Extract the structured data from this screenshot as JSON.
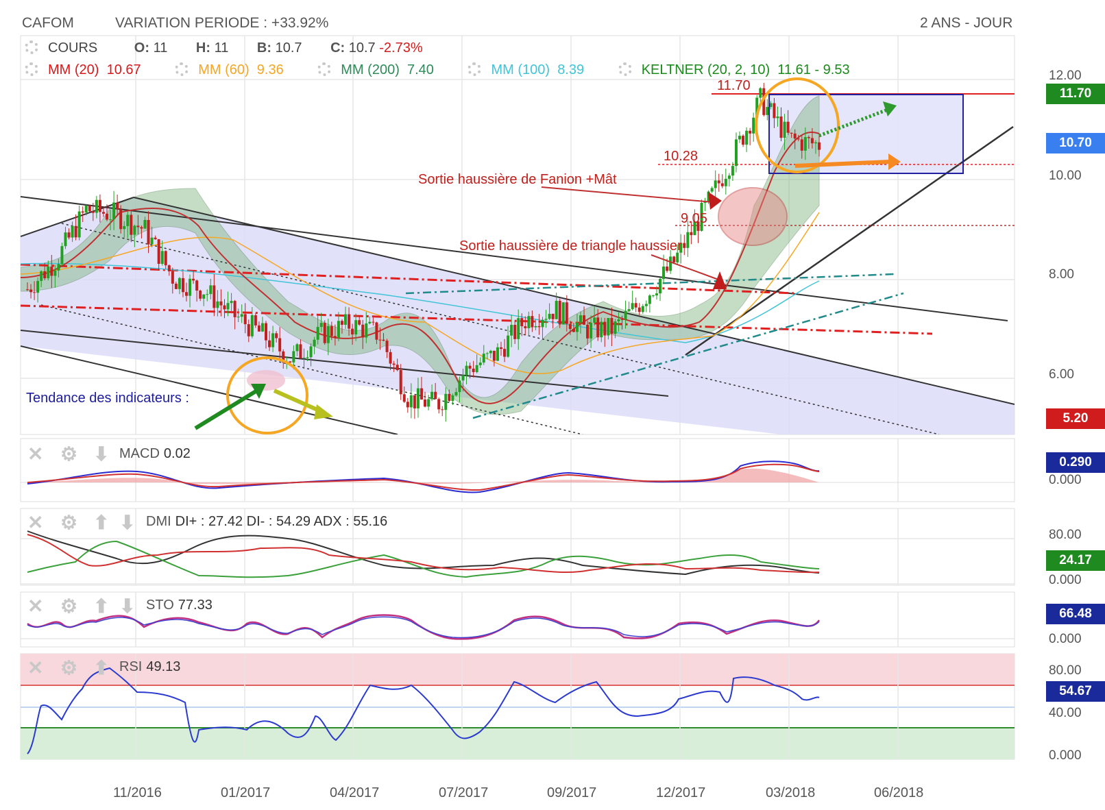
{
  "header": {
    "symbol": "CAFOM",
    "variation_label": "VARIATION PERIODE : +33.92%",
    "period": "2 ANS - JOUR"
  },
  "legend": {
    "cours_label": "COURS",
    "o_label": "O:",
    "o_value": "11",
    "h_label": "H:",
    "h_value": "11",
    "b_label": "B:",
    "b_value": "10.7",
    "c_label": "C:",
    "c_value": "10.7",
    "c_change": "-2.73%",
    "mm20_label": "MM (20)",
    "mm20_value": "10.67",
    "mm20_color": "#d7191c",
    "mm60_label": "MM (60)",
    "mm60_value": "9.36",
    "mm60_color": "#f5a623",
    "mm200_label": "MM (200)",
    "mm200_value": "7.40",
    "mm200_color": "#2e8b57",
    "mm100_label": "MM (100)",
    "mm100_value": "8.39",
    "mm100_color": "#40c4d8",
    "keltner_label": "KELTNER (20, 2, 10)",
    "keltner_value": "11.61 - 9.53",
    "keltner_color": "#1a8a1a"
  },
  "price_axis": {
    "ticks": [
      "12.00",
      "10.00",
      "8.00",
      "6.00"
    ],
    "tag_top": "11.70",
    "tag_current": "10.70",
    "tag_low": "5.20"
  },
  "x_axis": {
    "ticks": [
      "11/2016",
      "01/2017",
      "04/2017",
      "07/2017",
      "09/2017",
      "12/2017",
      "03/2018",
      "06/2018"
    ]
  },
  "annotations": {
    "level_1170": "11.70",
    "level_1028": "10.28",
    "level_905": "9.05",
    "fanion": "Sortie haussière de Fanion +Mât",
    "triangle": "Sortie haussière de triangle haussier",
    "tendance": "Tendance des indicateurs :"
  },
  "macd": {
    "label": "MACD",
    "value": "0.02",
    "tag": "0.290",
    "axis": [
      "0.000"
    ]
  },
  "dmi": {
    "label": "DMI",
    "values": "DI+ : 27.42 DI- : 54.29 ADX : 55.16",
    "tag": "24.17",
    "axis": [
      "80.00",
      "0.000"
    ]
  },
  "sto": {
    "label": "STO",
    "value": "77.33",
    "tag": "66.48",
    "axis": [
      "0.000"
    ]
  },
  "rsi": {
    "label": "RSI",
    "value": "49.13",
    "tag": "54.67",
    "axis": [
      "80.00",
      "40.00",
      "0.000"
    ]
  },
  "colors": {
    "green_tag": "#1f8a1f",
    "blue_tag": "#3a7ff0",
    "red_tag": "#d01c1c",
    "navy_tag": "#1a2a9a",
    "annotation_red": "#c0201c",
    "channel_fill": "#dcdcf8"
  },
  "chart_data": {
    "type": "line",
    "title": "CAFOM",
    "period": "2 ANS - JOUR",
    "x_ticks": [
      "11/2016",
      "01/2017",
      "04/2017",
      "07/2017",
      "09/2017",
      "12/2017",
      "03/2018",
      "06/2018"
    ],
    "y_ticks": [
      12.0,
      10.0,
      8.0,
      6.0
    ],
    "ylim": [
      5.2,
      12.7
    ],
    "series": [
      {
        "name": "COURS",
        "points": [
          [
            "2016-09",
            7.8
          ],
          [
            "2016-10",
            8.4
          ],
          [
            "2016-10",
            9.4
          ],
          [
            "2016-11",
            9.3
          ],
          [
            "2016-12",
            9.0
          ],
          [
            "2016-12",
            8.0
          ],
          [
            "2017-01",
            7.8
          ],
          [
            "2017-02",
            7.3
          ],
          [
            "2017-03",
            6.9
          ],
          [
            "2017-04",
            6.4
          ],
          [
            "2017-04",
            6.9
          ],
          [
            "2017-05",
            7.1
          ],
          [
            "2017-06",
            6.9
          ],
          [
            "2017-07",
            5.6
          ],
          [
            "2017-07",
            5.5
          ],
          [
            "2017-08",
            6.2
          ],
          [
            "2017-09",
            6.5
          ],
          [
            "2017-09",
            7.2
          ],
          [
            "2017-10",
            7.4
          ],
          [
            "2017-11",
            7.0
          ],
          [
            "2017-12",
            7.0
          ],
          [
            "2018-01",
            7.6
          ],
          [
            "2018-01",
            8.3
          ],
          [
            "2018-02",
            9.3
          ],
          [
            "2018-02",
            10.4
          ],
          [
            "2018-03",
            11.6
          ],
          [
            "2018-03",
            10.8
          ],
          [
            "2018-04",
            10.7
          ]
        ]
      },
      {
        "name": "MM (20)",
        "last": 10.67
      },
      {
        "name": "MM (60)",
        "last": 9.36
      },
      {
        "name": "MM (200)",
        "last": 7.4
      },
      {
        "name": "MM (100)",
        "last": 8.39
      }
    ],
    "horizontal_levels": [
      11.7,
      10.28,
      9.05
    ],
    "indicators": {
      "MACD": {
        "value": 0.02,
        "last_tag": 0.29
      },
      "DMI": {
        "di_plus": 27.42,
        "di_minus": 54.29,
        "adx": 55.16,
        "last_tag": 24.17
      },
      "STO": {
        "value": 77.33,
        "last_tag": 66.48
      },
      "RSI": {
        "value": 49.13,
        "last_tag": 54.67,
        "upper": 80,
        "lower": 40
      }
    }
  }
}
